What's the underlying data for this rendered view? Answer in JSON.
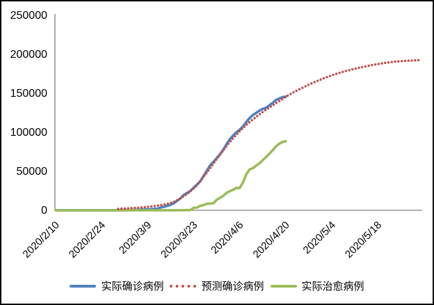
{
  "colors": {
    "actual_confirmed": "#4F81BD",
    "predicted_confirmed": "#C0504D",
    "actual_cured": "#9BBB59",
    "axis_line": "#808080",
    "label_text": "#000000",
    "frame_border": "#000000",
    "background": "#FFFFFF"
  },
  "chart_data": {
    "type": "line",
    "grid": false,
    "legend_position": "bottom",
    "ylim": [
      0,
      250000
    ],
    "y_ticks": [
      0,
      50000,
      100000,
      150000,
      200000,
      250000
    ],
    "x_tick_labels": [
      "2020/2/10",
      "2020/2/24",
      "2020/3/9",
      "2020/3/23",
      "2020/4/6",
      "2020/4/20",
      "2020/5/4",
      "2020/5/18"
    ],
    "x_tick_days": [
      0,
      14,
      28,
      42,
      56,
      70,
      84,
      98
    ],
    "x_axis_span_days": 112,
    "x_label_rotation": -45,
    "series": [
      {
        "name": "实际确诊病例",
        "line_style": "solid",
        "color": "#4F81BD",
        "start_day": 0,
        "values": [
          14,
          16,
          16,
          16,
          16,
          16,
          16,
          16,
          16,
          16,
          16,
          16,
          16,
          16,
          16,
          17,
          27,
          46,
          48,
          79,
          130,
          159,
          196,
          262,
          482,
          670,
          799,
          1040,
          1176,
          1457,
          1908,
          2078,
          3675,
          4585,
          5795,
          7272,
          9257,
          12327,
          15320,
          19848,
          22213,
          24873,
          29056,
          32986,
          37323,
          43938,
          50871,
          57695,
          62095,
          66885,
          71808,
          77872,
          84794,
          91159,
          96092,
          100123,
          103374,
          107663,
          113296,
          118181,
          122171,
          124908,
          127854,
          130072,
          131359,
          134753,
          137698,
          141397,
          143342,
          145184,
          145743
        ]
      },
      {
        "name": "预测确诊病例",
        "line_style": "dotted",
        "color": "#C0504D",
        "start_day": 19,
        "values": [
          1900,
          2100,
          2300,
          2500,
          2750,
          3000,
          3300,
          3600,
          4000,
          4400,
          4900,
          5400,
          6000,
          6600,
          7400,
          8200,
          9500,
          11000,
          13100,
          15500,
          18100,
          21000,
          24400,
          28000,
          32500,
          37500,
          43000,
          48500,
          54200,
          60000,
          65800,
          71500,
          77000,
          82500,
          87600,
          92500,
          97100,
          101500,
          105600,
          109500,
          113100,
          116500,
          119800,
          123000,
          126100,
          129000,
          131800,
          134500,
          137300,
          140000,
          142800,
          145500,
          148000,
          150500,
          152800,
          155000,
          157000,
          159000,
          161000,
          163000,
          164800,
          166500,
          168300,
          170000,
          171500,
          173000,
          174400,
          175800,
          177100,
          178300,
          179400,
          180500,
          181500,
          182500,
          183400,
          184300,
          185200,
          186000,
          186800,
          187500,
          188200,
          188800,
          189400,
          190000,
          190500,
          190900,
          191200,
          191500,
          191800,
          192000,
          192200,
          192400,
          192500
        ]
      },
      {
        "name": "实际治愈病例",
        "line_style": "solid",
        "color": "#9BBB59",
        "start_day": 0,
        "values": [
          0,
          0,
          12,
          12,
          12,
          12,
          14,
          14,
          14,
          14,
          16,
          16,
          16,
          16,
          16,
          16,
          16,
          16,
          16,
          16,
          16,
          16,
          16,
          16,
          16,
          17,
          18,
          18,
          18,
          18,
          24,
          25,
          46,
          46,
          46,
          67,
          67,
          105,
          113,
          180,
          233,
          266,
          3243,
          3547,
          5673,
          6658,
          8481,
          8481,
          9211,
          13500,
          16100,
          18700,
          22440,
          24575,
          26400,
          28700,
          28700,
          36081,
          46300,
          52407,
          53913,
          57400,
          60300,
          64300,
          68200,
          72600,
          77000,
          81800,
          85400,
          87600,
          88600
        ]
      }
    ]
  }
}
